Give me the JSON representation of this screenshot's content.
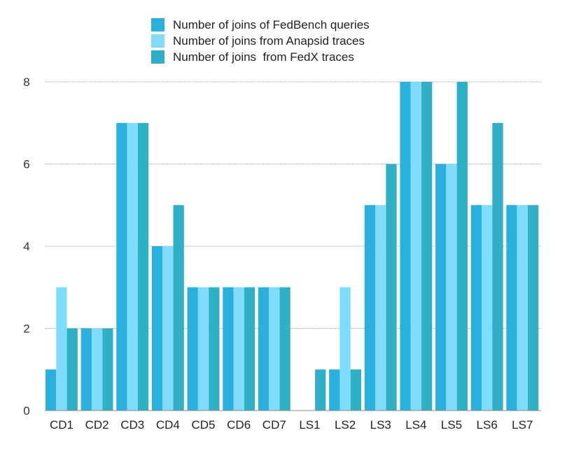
{
  "chart_data": {
    "type": "bar",
    "title": "",
    "xlabel": "",
    "ylabel": "",
    "categories": [
      "CD1",
      "CD2",
      "CD3",
      "CD4",
      "CD5",
      "CD6",
      "CD7",
      "LS1",
      "LS2",
      "LS3",
      "LS4",
      "LS5",
      "LS6",
      "LS7"
    ],
    "series": [
      {
        "name": "Number of joins of FedBench queries",
        "color": "#2ab0de",
        "values": [
          1,
          2,
          7,
          4,
          3,
          3,
          3,
          0,
          1,
          5,
          8,
          6,
          5,
          5
        ]
      },
      {
        "name": "Number of joins from Anapsid traces",
        "color": "#7fdcfb",
        "values": [
          3,
          2,
          7,
          4,
          3,
          3,
          3,
          0,
          3,
          5,
          8,
          6,
          5,
          5
        ]
      },
      {
        "name": "Number of joins  from FedX traces",
        "color": "#30b0c6",
        "values": [
          2,
          2,
          7,
          5,
          3,
          3,
          3,
          1,
          1,
          6,
          8,
          8,
          7,
          5
        ]
      }
    ],
    "ylim": [
      0,
      8
    ],
    "yticks": [
      0,
      2,
      4,
      6,
      8
    ],
    "grid": true,
    "legend_position": "top-center"
  }
}
